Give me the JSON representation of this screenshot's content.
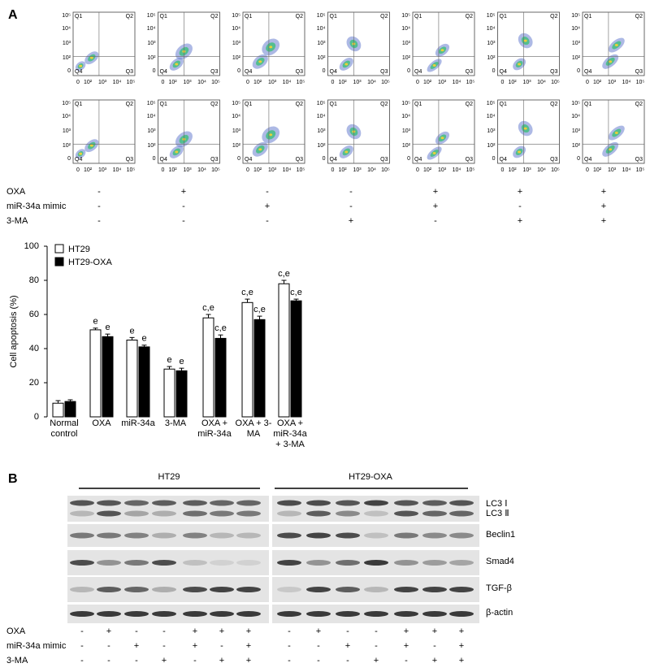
{
  "panel_a": {
    "label": "A",
    "flow_cytometry": {
      "quadrants": [
        "Q1",
        "Q2",
        "Q3",
        "Q4"
      ],
      "x_ticks": [
        "0",
        "10²",
        "10³",
        "10⁴",
        "10⁵"
      ],
      "y_ticks": [
        "0",
        "10²",
        "10³",
        "10⁴",
        "10⁵"
      ]
    },
    "treatments": [
      {
        "label": "OXA",
        "values": [
          "-",
          "+",
          "-",
          "-",
          "+",
          "+",
          "+"
        ]
      },
      {
        "label": "miR-34a mimic",
        "values": [
          "-",
          "-",
          "+",
          "-",
          "+",
          "-",
          "+"
        ]
      },
      {
        "label": "3-MA",
        "values": [
          "-",
          "-",
          "-",
          "+",
          "-",
          "+",
          "+"
        ]
      }
    ]
  },
  "chart_data": {
    "type": "bar",
    "y_label": "Cell apoptosis (%)",
    "categories": [
      "Normal control",
      "OXA",
      "miR-34a",
      "3-MA",
      "OXA + miR-34a",
      "OXA + 3-MA",
      "OXA + miR-34a + 3-MA"
    ],
    "series": [
      {
        "name": "HT29",
        "color": "#ffffff",
        "values": [
          8,
          51,
          45,
          28,
          58,
          67,
          78
        ],
        "errors": [
          1.5,
          1,
          1.5,
          1.5,
          2,
          2,
          2
        ],
        "annotations": [
          null,
          "e",
          "e",
          "e",
          "c,e",
          "c,e",
          "c,e"
        ]
      },
      {
        "name": "HT29-OXA",
        "color": "#000000",
        "values": [
          9,
          47,
          41,
          27,
          46,
          57,
          68
        ],
        "errors": [
          1,
          1.5,
          1,
          1.5,
          2,
          2,
          1
        ],
        "annotations": [
          null,
          "e",
          "e",
          "e",
          "c,e",
          "c,e",
          "c,e"
        ]
      }
    ],
    "ylim": [
      0,
      100
    ],
    "yticks": [
      0,
      20,
      40,
      60,
      80,
      100
    ],
    "legend": "upper-left"
  },
  "panel_b": {
    "label": "B",
    "groups": [
      "HT29",
      "HT29-OXA"
    ],
    "blots": [
      "LC3 Ⅰ",
      "LC3 Ⅱ",
      "Beclin1",
      "Smad4",
      "TGF-β",
      "β-actin"
    ],
    "treatments": [
      {
        "label": "OXA",
        "values": [
          "-",
          "+",
          "-",
          "-",
          "+",
          "+",
          "+",
          "-",
          "+",
          "-",
          "-",
          "+",
          "+",
          "+"
        ]
      },
      {
        "label": "miR-34a mimic",
        "values": [
          "-",
          "-",
          "+",
          "-",
          "+",
          "-",
          "+",
          "-",
          "-",
          "+",
          "-",
          "+",
          "-",
          "+"
        ]
      },
      {
        "label": "3-MA",
        "values": [
          "-",
          "-",
          "-",
          "+",
          "-",
          "+",
          "+",
          "-",
          "-",
          "-",
          "+",
          "-",
          "+",
          "+"
        ]
      }
    ]
  }
}
